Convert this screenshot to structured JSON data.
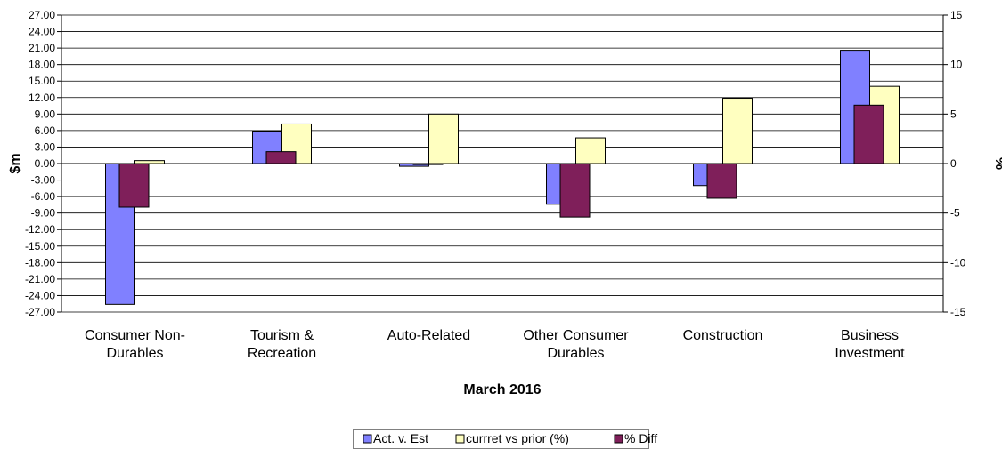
{
  "chart_data": {
    "type": "bar",
    "title": "",
    "xlabel": "March 2016",
    "ylabel": "$m",
    "y2label": "%",
    "categories": [
      [
        "Consumer Non-",
        "Durables"
      ],
      [
        "Tourism &",
        "Recreation"
      ],
      [
        "Auto-Related"
      ],
      [
        "Other Consumer",
        "Durables"
      ],
      [
        "Construction"
      ],
      [
        "Business",
        "Investment"
      ]
    ],
    "ylim": [
      -27,
      27
    ],
    "yticks": [
      "27.00",
      "24.00",
      "21.00",
      "18.00",
      "15.00",
      "12.00",
      "9.00",
      "6.00",
      "3.00",
      "0.00",
      "-3.00",
      "-6.00",
      "-9.00",
      "-12.00",
      "-15.00",
      "-18.00",
      "-21.00",
      "-24.00",
      "-27.00"
    ],
    "y2lim": [
      -15,
      15
    ],
    "y2ticks": [
      "15",
      "10",
      "5",
      "0",
      "-5",
      "-10",
      "-15"
    ],
    "grid": true,
    "legend_position": "bottom",
    "series": [
      {
        "name": "Act. v. Est",
        "axis": "left",
        "color": "#8080ff",
        "values": [
          -25.6,
          5.9,
          -0.5,
          -7.4,
          -4.0,
          20.6
        ]
      },
      {
        "name": "currret vs prior (%)",
        "axis": "right",
        "color": "#ffffc0",
        "values": [
          0.3,
          4.0,
          5.0,
          2.6,
          6.6,
          7.8
        ]
      },
      {
        "name": "% Diff",
        "axis": "right",
        "color": "#7f1f5a",
        "values": [
          -4.4,
          1.2,
          -0.1,
          -5.4,
          -3.5,
          5.9
        ]
      }
    ]
  }
}
